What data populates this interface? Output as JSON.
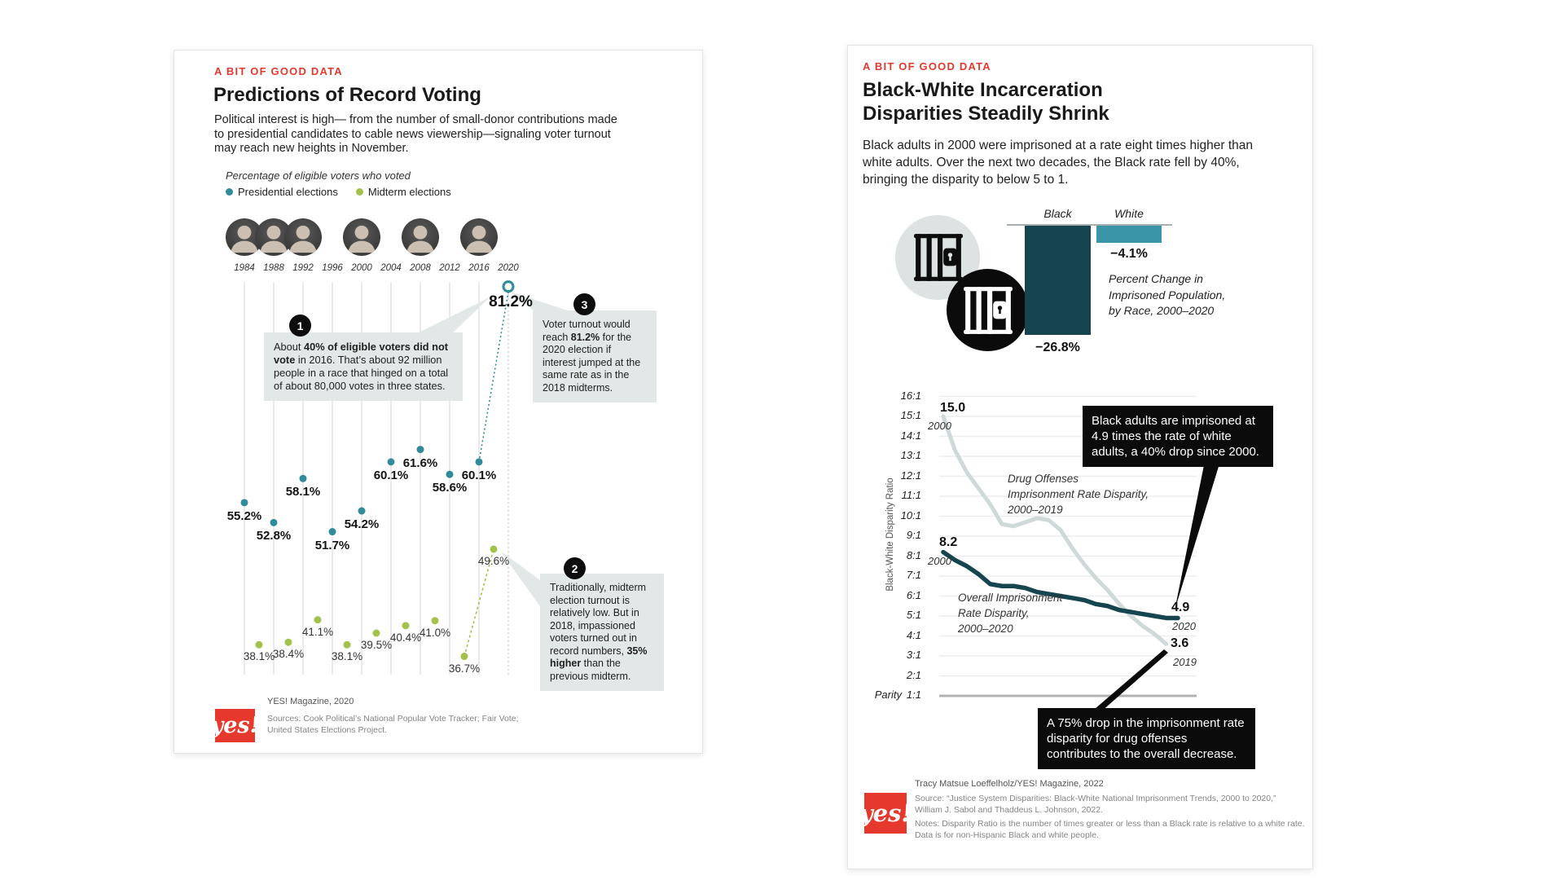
{
  "left_card": {
    "kicker": "A BIT OF GOOD DATA",
    "title": "Predictions of Record Voting",
    "intro": "Political interest is high— from the number of small-donor contributions made to presidential candidates to cable news viewership—signaling voter turnout may reach new heights in November.",
    "legend_title": "Percentage of eligible voters who voted",
    "president_years": [
      "1984",
      "1988",
      "1992",
      "2000",
      "2008",
      "2016"
    ],
    "annotations": [
      {
        "num": "1",
        "html": "About <b>40% of eligible voters did not vote</b> in 2016. That’s about 92 million people in a race that hinged on a total of about 80,000 votes in three states."
      },
      {
        "num": "2",
        "html": "Traditionally, midterm election turnout is relatively low. But in 2018, impassioned voters turned out in record numbers, <b>35% higher</b> than the previous midterm."
      },
      {
        "num": "3",
        "html": "Voter turnout would reach <b>81.2%</b> for the 2020 election if interest jumped at the same rate as in the 2018 midterms."
      }
    ],
    "footer": {
      "credit": "YES! Magazine, 2020",
      "sources": "Sources: Cook Political’s National Popular Vote Tracker; Fair Vote;\nUnited States Elections Project.",
      "logo_text": "yes!"
    }
  },
  "right_card": {
    "kicker": "A BIT OF GOOD DATA",
    "title": "Black-White Incarceration\nDisparities Steadily Shrink",
    "intro": "Black adults in 2000 were imprisoned at a rate eight times higher than white adults. Over the next two decades, the Black rate fell by 40%, bringing the disparity to below 5 to 1.",
    "callouts": [
      "Black adults are imprisoned at 4.9 times the rate of white adults, a 40% drop since 2000.",
      "A 75% drop in the imprisonment rate disparity for drug offenses contributes to the overall decrease."
    ],
    "footer": {
      "credit": "Tracy Matsue Loeffelholz/YES! Magazine, 2022",
      "source": "Source: “Justice System Disparities: Black-White National Imprisonment Trends, 2000 to 2020,”\nWilliam J. Sabol and Thaddeus L. Johnson, 2022.",
      "notes": "Notes: Disparity Ratio is the number of times greater or less than a Black rate is relative to a white rate.\nData is for non-Hispanic Black and white people.",
      "logo_text": "yes!"
    }
  },
  "chart_data": [
    {
      "type": "scatter",
      "title": "Percentage of eligible voters who voted",
      "x_ticks": [
        "1984",
        "1988",
        "1992",
        "1996",
        "2000",
        "2004",
        "2008",
        "2012",
        "2016",
        "2020"
      ],
      "series": [
        {
          "name": "Presidential elections",
          "color": "#318b99",
          "points": [
            {
              "year": 1984,
              "value": 55.2,
              "label": "55.2%"
            },
            {
              "year": 1988,
              "value": 52.8,
              "label": "52.8%"
            },
            {
              "year": 1992,
              "value": 58.1,
              "label": "58.1%"
            },
            {
              "year": 1996,
              "value": 51.7,
              "label": "51.7%"
            },
            {
              "year": 2000,
              "value": 54.2,
              "label": "54.2%"
            },
            {
              "year": 2004,
              "value": 60.1,
              "label": "60.1%"
            },
            {
              "year": 2008,
              "value": 61.6,
              "label": "61.6%"
            },
            {
              "year": 2012,
              "value": 58.6,
              "label": "58.6%"
            },
            {
              "year": 2016,
              "value": 60.1,
              "label": "60.1%"
            }
          ]
        },
        {
          "name": "Midterm elections",
          "color": "#a2c24b",
          "points": [
            {
              "year": 1986,
              "value": 38.1,
              "label": "38.1%"
            },
            {
              "year": 1990,
              "value": 38.4,
              "label": "38.4%"
            },
            {
              "year": 1994,
              "value": 41.1,
              "label": "41.1%"
            },
            {
              "year": 1998,
              "value": 38.1,
              "label": "38.1%"
            },
            {
              "year": 2002,
              "value": 39.5,
              "label": "39.5%"
            },
            {
              "year": 2006,
              "value": 40.4,
              "label": "40.4%"
            },
            {
              "year": 2010,
              "value": 41.0,
              "label": "41.0%"
            },
            {
              "year": 2014,
              "value": 36.7,
              "label": "36.7%"
            },
            {
              "year": 2018,
              "value": 49.6,
              "label": "49.6%"
            }
          ]
        }
      ],
      "projection": {
        "year": 2020,
        "value": 81.2,
        "label": "81.2%"
      }
    },
    {
      "type": "bar",
      "categories": [
        "Black",
        "White"
      ],
      "values": [
        -26.8,
        -4.1
      ],
      "value_labels": [
        "−26.8%",
        "−4.1%"
      ],
      "colors": [
        "#16454f",
        "#3b95a9"
      ],
      "caption": "Percent Change in\nImprisoned Population,\nby Race, 2000–2020"
    },
    {
      "type": "line",
      "ylabel": "Black-White Disparity Ratio",
      "y_ticks": [
        "16:1",
        "15:1",
        "14:1",
        "13:1",
        "12:1",
        "11:1",
        "10:1",
        "9:1",
        "8:1",
        "7:1",
        "6:1",
        "5:1",
        "4:1",
        "3:1",
        "2:1",
        "1:1"
      ],
      "parity_label": "Parity",
      "x_range": [
        2000,
        2020
      ],
      "series": [
        {
          "name": "Drug Offenses\nImprisonment Rate Disparity,\n2000–2019",
          "color": "#cfd9da",
          "start_label": "15.0",
          "start_year": "2000",
          "end_label": "3.6",
          "end_year": "2019",
          "values": [
            [
              2000,
              15.0
            ],
            [
              2001,
              13.3
            ],
            [
              2002,
              12.2
            ],
            [
              2003,
              11.4
            ],
            [
              2004,
              10.6
            ],
            [
              2005,
              9.6
            ],
            [
              2006,
              9.5
            ],
            [
              2007,
              9.7
            ],
            [
              2008,
              9.9
            ],
            [
              2009,
              9.8
            ],
            [
              2010,
              9.3
            ],
            [
              2011,
              8.4
            ],
            [
              2012,
              7.6
            ],
            [
              2013,
              6.9
            ],
            [
              2014,
              6.3
            ],
            [
              2015,
              5.6
            ],
            [
              2016,
              5.0
            ],
            [
              2017,
              4.5
            ],
            [
              2018,
              4.1
            ],
            [
              2019,
              3.6
            ]
          ]
        },
        {
          "name": "Overall Imprisonment\nRate Disparity,\n2000–2020",
          "color": "#16454f",
          "start_label": "8.2",
          "start_year": "2000",
          "end_label": "4.9",
          "end_year": "2020",
          "values": [
            [
              2000,
              8.2
            ],
            [
              2001,
              7.8
            ],
            [
              2002,
              7.5
            ],
            [
              2003,
              7.1
            ],
            [
              2004,
              6.6
            ],
            [
              2005,
              6.5
            ],
            [
              2006,
              6.5
            ],
            [
              2007,
              6.4
            ],
            [
              2008,
              6.2
            ],
            [
              2009,
              6.1
            ],
            [
              2010,
              6.0
            ],
            [
              2011,
              5.9
            ],
            [
              2012,
              5.8
            ],
            [
              2013,
              5.6
            ],
            [
              2014,
              5.5
            ],
            [
              2015,
              5.3
            ],
            [
              2016,
              5.2
            ],
            [
              2017,
              5.1
            ],
            [
              2018,
              5.0
            ],
            [
              2019,
              4.9
            ],
            [
              2020,
              4.9
            ]
          ]
        }
      ]
    }
  ]
}
